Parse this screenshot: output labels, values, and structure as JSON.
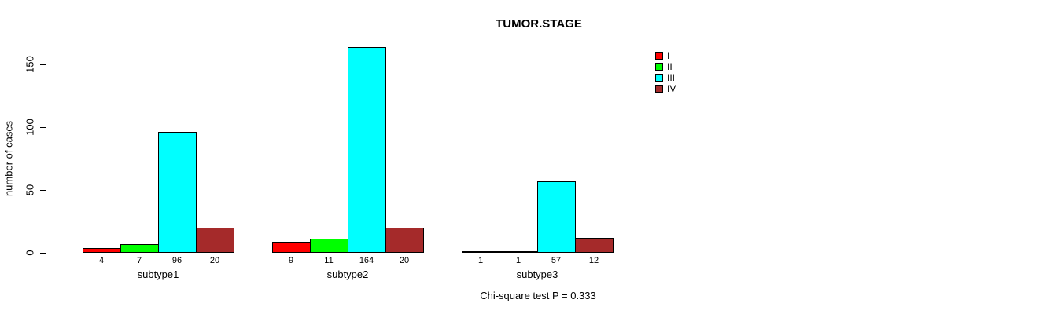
{
  "chart_data": {
    "type": "bar",
    "title": "TUMOR.STAGE",
    "ylabel": "number of cases",
    "xlabel": "",
    "categories": [
      "subtype1",
      "subtype2",
      "subtype3"
    ],
    "series": [
      {
        "name": "I",
        "color": "#FF0000",
        "values": [
          4,
          9,
          1
        ]
      },
      {
        "name": "II",
        "color": "#00FF00",
        "values": [
          7,
          11,
          1
        ]
      },
      {
        "name": "III",
        "color": "#00FFFF",
        "values": [
          96,
          164,
          57
        ]
      },
      {
        "name": "IV",
        "color": "#A52A2A",
        "values": [
          20,
          20,
          12
        ]
      }
    ],
    "yticks": [
      0,
      50,
      100,
      150
    ],
    "ylim": [
      0,
      164
    ],
    "grid": false,
    "legend_position": "top-right",
    "bar_value_labels": true,
    "annotation": "Chi-square test P = 0.333"
  }
}
